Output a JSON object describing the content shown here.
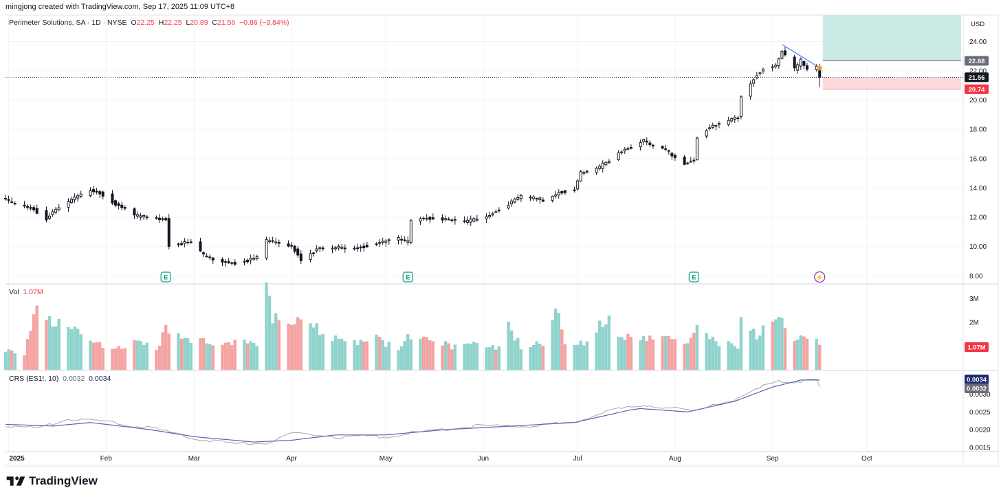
{
  "header": {
    "credit": "mingjong created with TradingView.com, Sep 17, 2025 11:09 UTC+8",
    "symbol": "Perimeter Solutions, SA · 1D · NYSE",
    "open_label": "O",
    "open": "22.25",
    "high_label": "H",
    "high": "22.25",
    "low_label": "L",
    "low": "20.89",
    "close_label": "C",
    "close": "21.56",
    "change": "−0.86 (−3.84%)"
  },
  "currency": "USD",
  "volume_legend": {
    "label": "Vol",
    "value": "1.07M"
  },
  "crs_legend": {
    "label": "CRS (ES1!, 10)",
    "value1": "0.0032",
    "value2": "0.0034"
  },
  "brand": {
    "name": "TradingView"
  },
  "colors": {
    "up_volume": "#8fd3cc",
    "down_volume": "#f4a3a3",
    "candle": "#131722",
    "crs_raw": "#a6a6a6",
    "crs_ma": "#5b62b5",
    "target_zone": "#cbe9e5",
    "stop_zone": "#fad9dc",
    "trendline": "#2962ff",
    "earnings": "#089981",
    "event": "#9c27b0"
  },
  "price_badges": [
    {
      "value": "22.68",
      "color": "#6a6d78"
    },
    {
      "value": "21.56",
      "color": "#131722"
    },
    {
      "value": "20.74",
      "color": "#f23645"
    }
  ],
  "volume_badge": {
    "value": "1.07M",
    "color": "#f23645"
  },
  "crs_badges": [
    {
      "value": "0.0034",
      "color": "#1d2a6e"
    },
    {
      "value": "0.0032",
      "color": "#6a6d78"
    }
  ],
  "event_markers": [
    {
      "date": "2025-02-20",
      "label": "E",
      "kind": "earnings"
    },
    {
      "date": "2025-05-08",
      "label": "E",
      "kind": "earnings"
    },
    {
      "date": "2025-08-07",
      "label": "E",
      "kind": "earnings"
    },
    {
      "date": "2025-09-16",
      "label": "⚡",
      "kind": "event"
    }
  ],
  "chart_data": {
    "type": "candlestick",
    "interval": "1D",
    "x_range": [
      "2024-12-31",
      "2025-10-31"
    ],
    "x_tick_labels": [
      {
        "date": "2025-01-01",
        "label": "2025"
      },
      {
        "date": "2025-02-01",
        "label": "Feb"
      },
      {
        "date": "2025-03-01",
        "label": "Mar"
      },
      {
        "date": "2025-04-01",
        "label": "Apr"
      },
      {
        "date": "2025-05-01",
        "label": "May"
      },
      {
        "date": "2025-06-01",
        "label": "Jun"
      },
      {
        "date": "2025-07-01",
        "label": "Jul"
      },
      {
        "date": "2025-08-01",
        "label": "Aug"
      },
      {
        "date": "2025-09-01",
        "label": "Sep"
      },
      {
        "date": "2025-10-01",
        "label": "Oct"
      }
    ],
    "price_ylim": [
      7.5,
      25.8
    ],
    "price_ticks": [
      "8.00",
      "10.00",
      "12.00",
      "14.00",
      "16.00",
      "18.00",
      "20.00",
      "22.00",
      "24.00"
    ],
    "volume_ylim": [
      0,
      3.6
    ],
    "volume_ticks": [
      "2M",
      "3M"
    ],
    "crs_ylim": [
      0.00138,
      0.00365
    ],
    "crs_ticks": [
      "0.0015",
      "0.0020",
      "0.0025",
      "0.0030"
    ],
    "trade_box": {
      "start": "2025-09-17",
      "end": "2025-10-31",
      "entry": 21.56,
      "target": 22.68,
      "stop": 20.74
    },
    "trendline": [
      [
        "2025-09-04",
        23.8
      ],
      [
        "2025-09-16",
        22.2
      ]
    ],
    "last_price_line": 21.56,
    "anchors": {
      "price": [
        [
          "2024-12-31",
          13.2
        ],
        [
          "2025-01-03",
          12.9
        ],
        [
          "2025-01-08",
          12.7
        ],
        [
          "2025-01-13",
          11.9
        ],
        [
          "2025-01-15",
          12.3
        ],
        [
          "2025-01-21",
          13.2
        ],
        [
          "2025-01-27",
          13.9
        ],
        [
          "2025-01-30",
          13.7
        ],
        [
          "2025-02-04",
          12.9
        ],
        [
          "2025-02-10",
          12.1
        ],
        [
          "2025-02-14",
          12.0
        ],
        [
          "2025-02-19",
          11.95
        ],
        [
          "2025-02-20",
          11.9
        ],
        [
          "2025-02-21",
          10.1
        ],
        [
          "2025-02-28",
          10.3
        ],
        [
          "2025-03-04",
          9.4
        ],
        [
          "2025-03-10",
          9.0
        ],
        [
          "2025-03-14",
          8.9
        ],
        [
          "2025-03-21",
          9.2
        ],
        [
          "2025-03-24",
          10.4
        ],
        [
          "2025-03-27",
          10.3
        ],
        [
          "2025-04-01",
          10.1
        ],
        [
          "2025-04-04",
          9.1
        ],
        [
          "2025-04-09",
          9.8
        ],
        [
          "2025-04-15",
          9.9
        ],
        [
          "2025-04-21",
          9.9
        ],
        [
          "2025-04-28",
          10.2
        ],
        [
          "2025-05-05",
          10.5
        ],
        [
          "2025-05-08",
          10.3
        ],
        [
          "2025-05-09",
          11.8
        ],
        [
          "2025-05-13",
          12.0
        ],
        [
          "2025-05-20",
          11.8
        ],
        [
          "2025-05-27",
          11.7
        ],
        [
          "2025-06-02",
          12.1
        ],
        [
          "2025-06-09",
          12.9
        ],
        [
          "2025-06-13",
          13.4
        ],
        [
          "2025-06-20",
          13.2
        ],
        [
          "2025-06-25",
          13.7
        ],
        [
          "2025-06-30",
          13.9
        ],
        [
          "2025-07-02",
          15.0
        ],
        [
          "2025-07-08",
          15.4
        ],
        [
          "2025-07-14",
          16.5
        ],
        [
          "2025-07-18",
          16.8
        ],
        [
          "2025-07-22",
          17.2
        ],
        [
          "2025-07-24",
          16.9
        ],
        [
          "2025-07-29",
          16.6
        ],
        [
          "2025-08-04",
          15.7
        ],
        [
          "2025-08-07",
          15.9
        ],
        [
          "2025-08-08",
          17.5
        ],
        [
          "2025-08-11",
          18.0
        ],
        [
          "2025-08-18",
          18.6
        ],
        [
          "2025-08-21",
          18.9
        ],
        [
          "2025-08-22",
          20.3
        ],
        [
          "2025-08-26",
          21.5
        ],
        [
          "2025-08-29",
          22.2
        ],
        [
          "2025-09-02",
          22.3
        ],
        [
          "2025-09-04",
          23.3
        ],
        [
          "2025-09-08",
          22.1
        ],
        [
          "2025-09-10",
          22.7
        ],
        [
          "2025-09-12",
          22.1
        ],
        [
          "2025-09-15",
          22.3
        ],
        [
          "2025-09-16",
          22.4
        ]
      ],
      "volume_millions": [
        [
          "2024-12-31",
          0.8
        ],
        [
          "2025-01-06",
          0.7
        ],
        [
          "2025-01-10",
          2.7
        ],
        [
          "2025-01-16",
          2.0
        ],
        [
          "2025-01-21",
          1.8
        ],
        [
          "2025-01-27",
          1.2
        ],
        [
          "2025-02-03",
          0.8
        ],
        [
          "2025-02-10",
          1.2
        ],
        [
          "2025-02-18",
          0.9
        ],
        [
          "2025-02-20",
          1.9
        ],
        [
          "2025-02-25",
          1.3
        ],
        [
          "2025-03-03",
          1.2
        ],
        [
          "2025-03-10",
          1.1
        ],
        [
          "2025-03-17",
          1.3
        ],
        [
          "2025-03-21",
          1.0
        ],
        [
          "2025-03-24",
          3.5
        ],
        [
          "2025-03-26",
          2.3
        ],
        [
          "2025-03-31",
          1.8
        ],
        [
          "2025-04-04",
          2.0
        ],
        [
          "2025-04-08",
          1.8
        ],
        [
          "2025-04-14",
          1.3
        ],
        [
          "2025-04-21",
          1.1
        ],
        [
          "2025-04-28",
          1.3
        ],
        [
          "2025-05-05",
          0.9
        ],
        [
          "2025-05-09",
          1.5
        ],
        [
          "2025-05-15",
          1.3
        ],
        [
          "2025-05-22",
          1.0
        ],
        [
          "2025-05-29",
          1.2
        ],
        [
          "2025-06-05",
          0.9
        ],
        [
          "2025-06-09",
          1.8
        ],
        [
          "2025-06-13",
          1.0
        ],
        [
          "2025-06-20",
          1.1
        ],
        [
          "2025-06-24",
          2.8
        ],
        [
          "2025-06-27",
          1.0
        ],
        [
          "2025-07-03",
          1.2
        ],
        [
          "2025-07-10",
          2.2
        ],
        [
          "2025-07-15",
          1.4
        ],
        [
          "2025-07-22",
          1.3
        ],
        [
          "2025-07-28",
          1.3
        ],
        [
          "2025-08-04",
          1.1
        ],
        [
          "2025-08-08",
          1.9
        ],
        [
          "2025-08-14",
          1.2
        ],
        [
          "2025-08-21",
          1.0
        ],
        [
          "2025-08-22",
          2.4
        ],
        [
          "2025-08-27",
          1.5
        ],
        [
          "2025-09-02",
          2.3
        ],
        [
          "2025-09-08",
          1.4
        ],
        [
          "2025-09-12",
          1.3
        ],
        [
          "2025-09-16",
          1.1
        ]
      ],
      "crs_raw": [
        [
          "2024-12-31",
          0.0021
        ],
        [
          "2025-01-10",
          0.00205
        ],
        [
          "2025-01-20",
          0.0023
        ],
        [
          "2025-02-03",
          0.0022
        ],
        [
          "2025-02-18",
          0.002
        ],
        [
          "2025-03-01",
          0.00175
        ],
        [
          "2025-03-14",
          0.0016
        ],
        [
          "2025-03-24",
          0.00162
        ],
        [
          "2025-04-01",
          0.0019
        ],
        [
          "2025-04-15",
          0.0018
        ],
        [
          "2025-05-01",
          0.0018
        ],
        [
          "2025-05-09",
          0.0019
        ],
        [
          "2025-05-30",
          0.0021
        ],
        [
          "2025-06-15",
          0.0021
        ],
        [
          "2025-06-30",
          0.0022
        ],
        [
          "2025-07-10",
          0.0025
        ],
        [
          "2025-07-22",
          0.0027
        ],
        [
          "2025-08-01",
          0.0026
        ],
        [
          "2025-08-07",
          0.0025
        ],
        [
          "2025-08-12",
          0.0027
        ],
        [
          "2025-08-22",
          0.0029
        ],
        [
          "2025-09-02",
          0.0034
        ],
        [
          "2025-09-08",
          0.00335
        ],
        [
          "2025-09-15",
          0.0034
        ],
        [
          "2025-09-16",
          0.0032
        ]
      ],
      "crs_ma": [
        [
          "2024-12-31",
          0.00215
        ],
        [
          "2025-01-15",
          0.0021
        ],
        [
          "2025-01-27",
          0.0022
        ],
        [
          "2025-02-15",
          0.002
        ],
        [
          "2025-03-01",
          0.0018
        ],
        [
          "2025-03-20",
          0.00165
        ],
        [
          "2025-04-01",
          0.0017
        ],
        [
          "2025-04-15",
          0.00185
        ],
        [
          "2025-05-01",
          0.00185
        ],
        [
          "2025-05-20",
          0.002
        ],
        [
          "2025-06-10",
          0.0021
        ],
        [
          "2025-06-30",
          0.0022
        ],
        [
          "2025-07-20",
          0.0026
        ],
        [
          "2025-08-05",
          0.0025
        ],
        [
          "2025-08-20",
          0.0028
        ],
        [
          "2025-09-01",
          0.0032
        ],
        [
          "2025-09-10",
          0.0034
        ],
        [
          "2025-09-16",
          0.0034
        ]
      ]
    }
  }
}
